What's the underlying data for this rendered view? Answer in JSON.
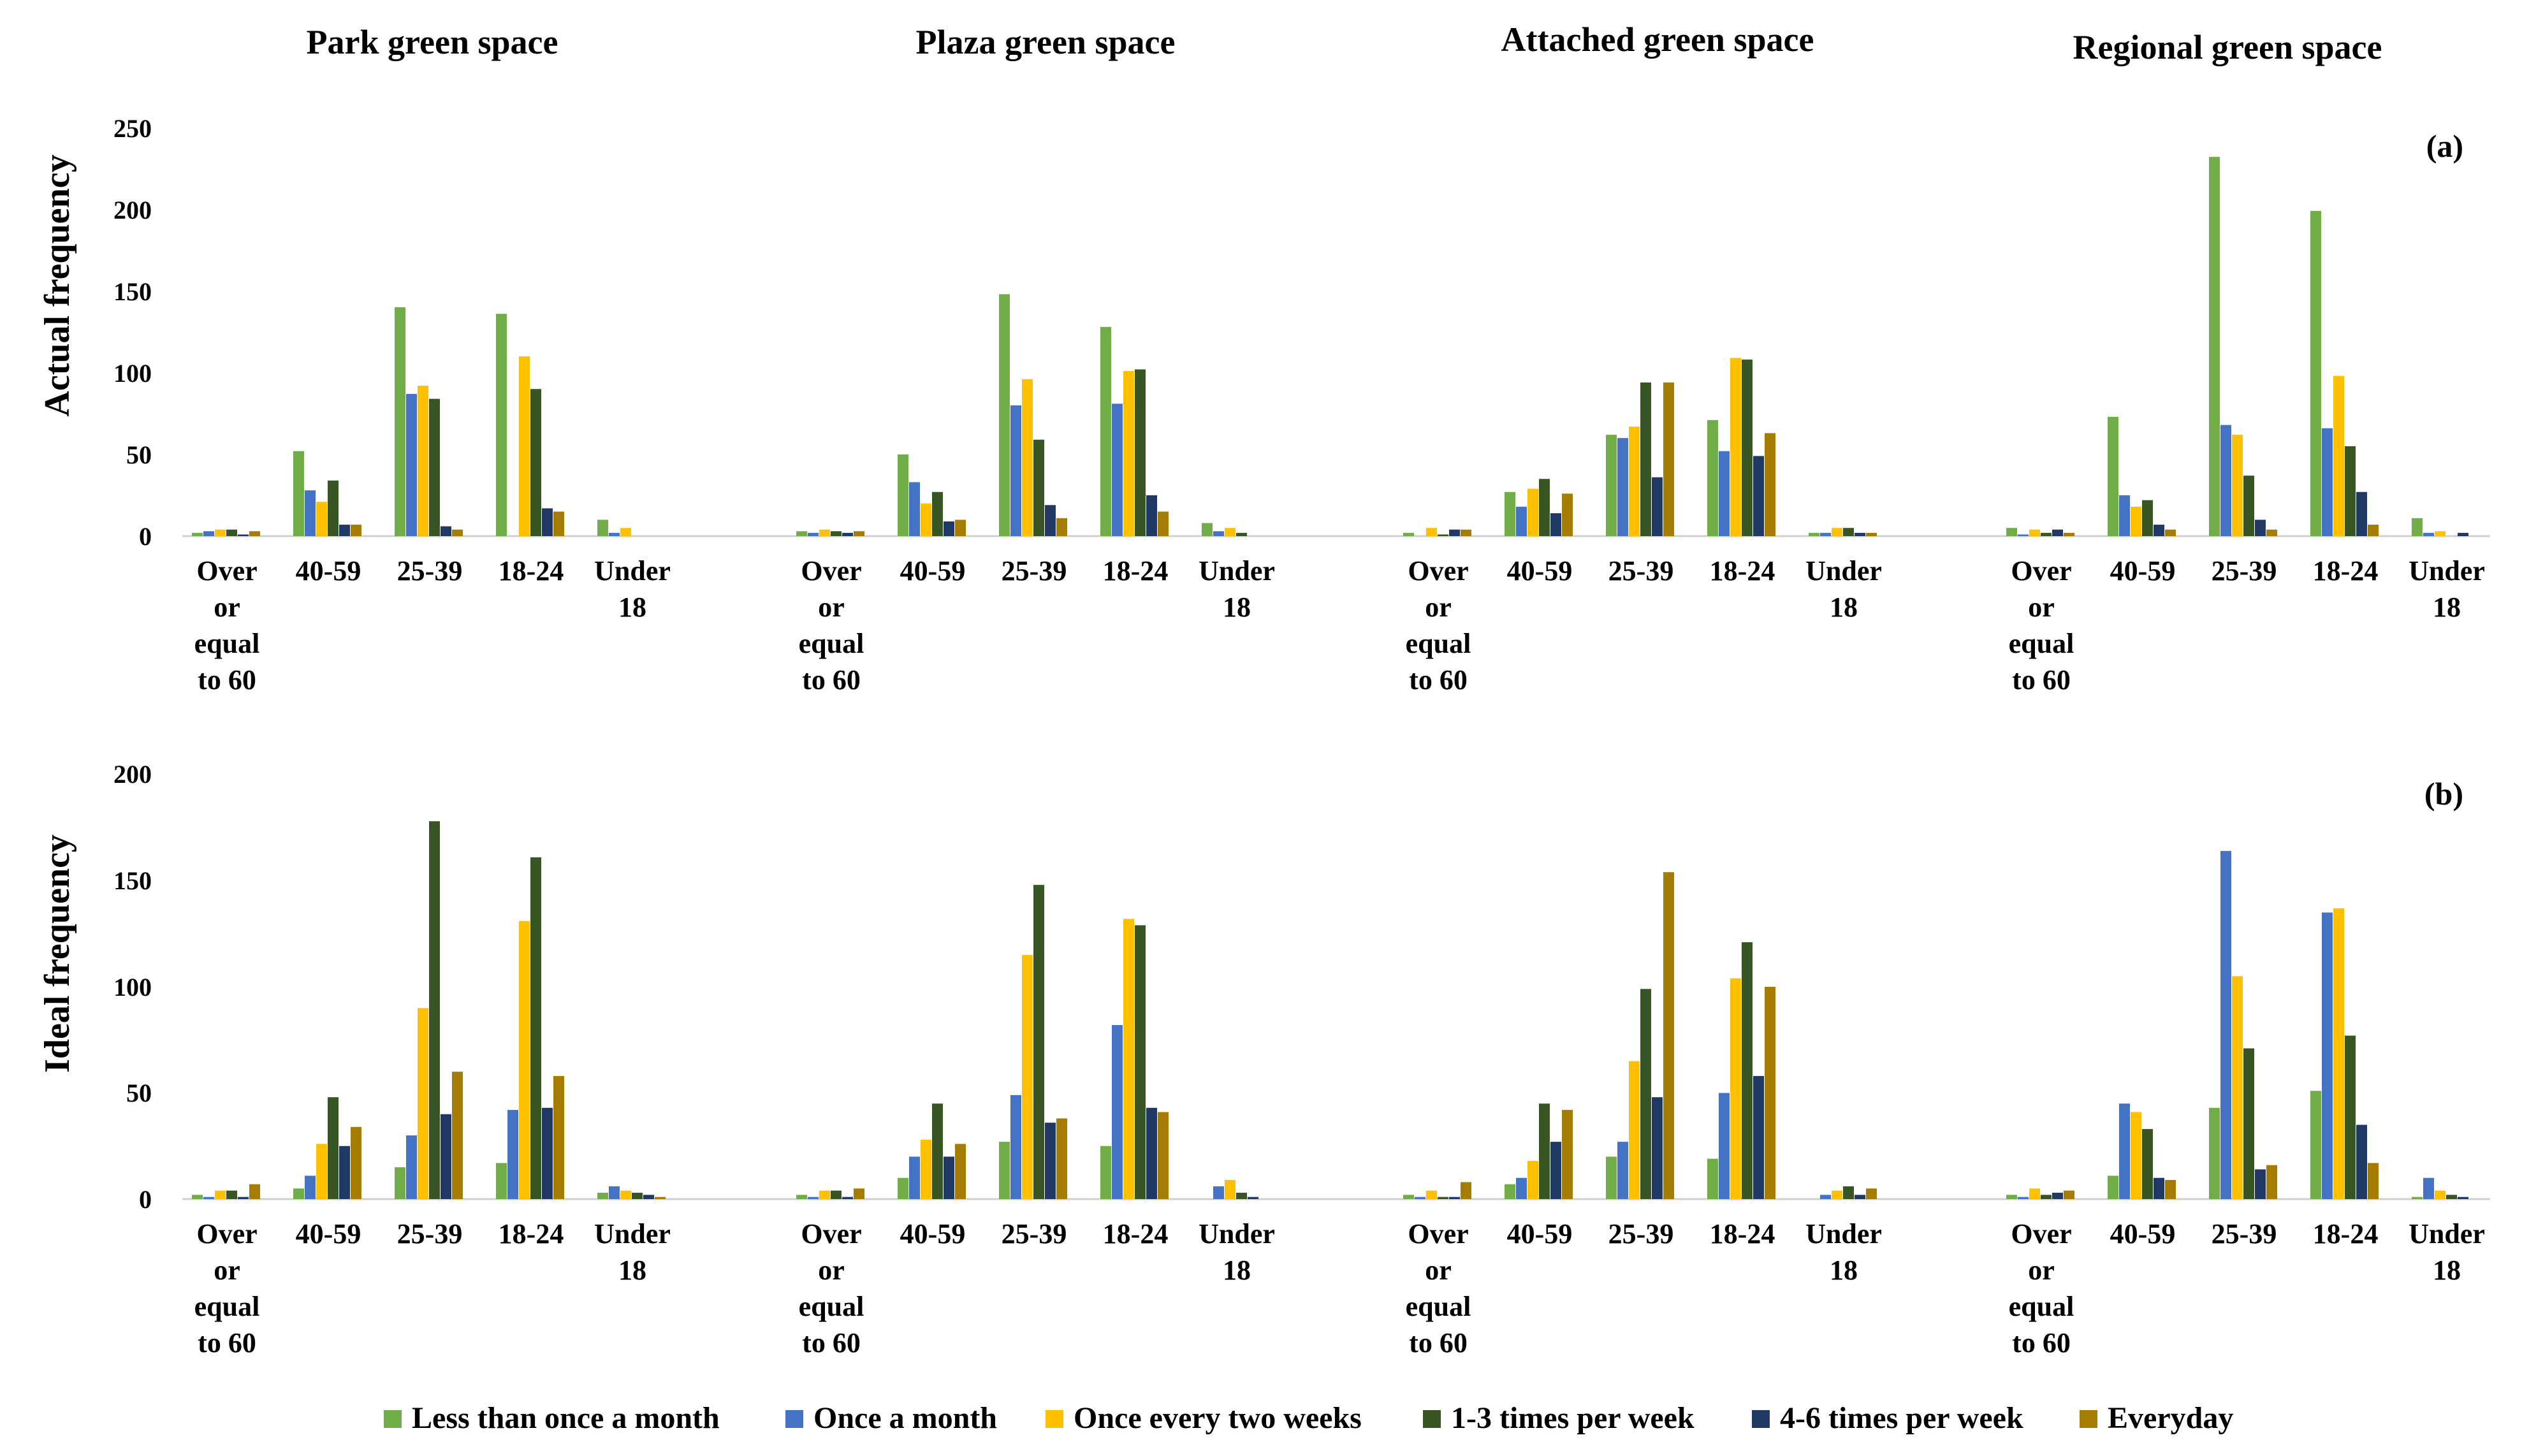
{
  "chart_data": {
    "type": "bar",
    "panel_titles": [
      "Park green space",
      "Plaza green space",
      "Attached green space",
      "Regional green space"
    ],
    "categories": [
      [
        "Over",
        "or",
        "equal",
        "to 60"
      ],
      [
        "40-59"
      ],
      [
        "25-39"
      ],
      [
        "18-24"
      ],
      [
        "Under",
        "18"
      ]
    ],
    "legend": [
      {
        "name": "Less than once a month",
        "color": "#70AD47"
      },
      {
        "name": "Once a month",
        "color": "#4472C4"
      },
      {
        "name": "Once every two weeks",
        "color": "#FFC000"
      },
      {
        "name": "1-3 times per week",
        "color": "#375623"
      },
      {
        "name": "4-6 times per week",
        "color": "#203864"
      },
      {
        "name": "Everyday",
        "color": "#A67C00"
      }
    ],
    "rows": [
      {
        "ylabel": "Actual frequency",
        "tag": "(a)",
        "ylim": [
          0,
          250
        ],
        "yticks": [
          "0",
          "50",
          "100",
          "150",
          "200",
          "250"
        ],
        "groups": [
          [
            [
              2,
              3,
              4,
              4,
              1,
              3
            ],
            [
              52,
              28,
              21,
              34,
              7,
              7
            ],
            [
              140,
              87,
              92,
              84,
              6,
              4
            ],
            [
              136,
              0,
              110,
              90,
              17,
              15
            ],
            [
              10,
              2,
              5,
              0,
              0,
              0
            ]
          ],
          [
            [
              3,
              2,
              4,
              3,
              2,
              3
            ],
            [
              50,
              33,
              20,
              27,
              9,
              10
            ],
            [
              148,
              80,
              96,
              59,
              19,
              11
            ],
            [
              128,
              81,
              101,
              102,
              25,
              15
            ],
            [
              8,
              3,
              5,
              2,
              0,
              0
            ]
          ],
          [
            [
              2,
              0,
              5,
              1,
              4,
              4
            ],
            [
              27,
              18,
              29,
              35,
              14,
              26
            ],
            [
              62,
              60,
              67,
              94,
              36,
              94
            ],
            [
              71,
              52,
              109,
              108,
              49,
              63
            ],
            [
              2,
              2,
              5,
              5,
              2,
              2
            ]
          ],
          [
            [
              5,
              1,
              4,
              2,
              4,
              2
            ],
            [
              73,
              25,
              18,
              22,
              7,
              4
            ],
            [
              232,
              68,
              62,
              37,
              10,
              4
            ],
            [
              199,
              66,
              98,
              55,
              27,
              7
            ],
            [
              11,
              2,
              3,
              0,
              2,
              0
            ]
          ]
        ]
      },
      {
        "ylabel": "Ideal frequency",
        "tag": "(b)",
        "ylim": [
          0,
          200
        ],
        "yticks": [
          "0",
          "50",
          "100",
          "150",
          "200"
        ],
        "groups": [
          [
            [
              2,
              1,
              4,
              4,
              1,
              7
            ],
            [
              5,
              11,
              26,
              48,
              25,
              34
            ],
            [
              15,
              30,
              90,
              178,
              40,
              60
            ],
            [
              17,
              42,
              131,
              161,
              43,
              58
            ],
            [
              3,
              6,
              4,
              3,
              2,
              1
            ]
          ],
          [
            [
              2,
              1,
              4,
              4,
              1,
              5
            ],
            [
              10,
              20,
              28,
              45,
              20,
              26
            ],
            [
              27,
              49,
              115,
              148,
              36,
              38
            ],
            [
              25,
              82,
              132,
              129,
              43,
              41
            ],
            [
              0,
              6,
              9,
              3,
              1,
              0
            ]
          ],
          [
            [
              2,
              1,
              4,
              1,
              1,
              8
            ],
            [
              7,
              10,
              18,
              45,
              27,
              42
            ],
            [
              20,
              27,
              65,
              99,
              48,
              154
            ],
            [
              19,
              50,
              104,
              121,
              58,
              100
            ],
            [
              0,
              2,
              4,
              6,
              2,
              5
            ]
          ],
          [
            [
              2,
              1,
              5,
              2,
              3,
              4
            ],
            [
              11,
              45,
              41,
              33,
              10,
              9
            ],
            [
              43,
              164,
              105,
              71,
              14,
              16
            ],
            [
              51,
              135,
              137,
              77,
              35,
              17
            ],
            [
              1,
              10,
              4,
              2,
              1,
              0
            ]
          ]
        ]
      }
    ]
  }
}
